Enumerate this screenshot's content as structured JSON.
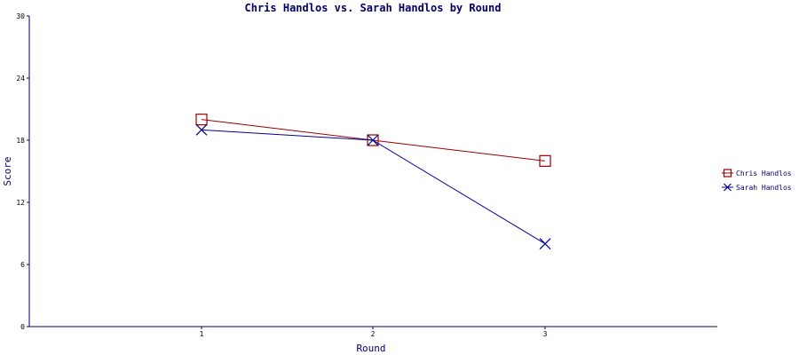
{
  "chart_data": {
    "type": "line",
    "title": "Chris Handlos vs. Sarah Handlos by Round",
    "xlabel": "Round",
    "ylabel": "Score",
    "categories": [
      "1",
      "2",
      "3"
    ],
    "x": [
      1,
      2,
      3
    ],
    "ylim": [
      0,
      30
    ],
    "yticks": [
      "0",
      "6",
      "12",
      "18",
      "24",
      "30"
    ],
    "grid": false,
    "legend_position": "right",
    "series": [
      {
        "name": "Chris Handlos",
        "values": [
          20,
          18,
          16
        ],
        "color": "#990000",
        "marker": "square"
      },
      {
        "name": "Sarah Handlos",
        "values": [
          19,
          18,
          8
        ],
        "color": "#000099",
        "marker": "x"
      }
    ]
  }
}
